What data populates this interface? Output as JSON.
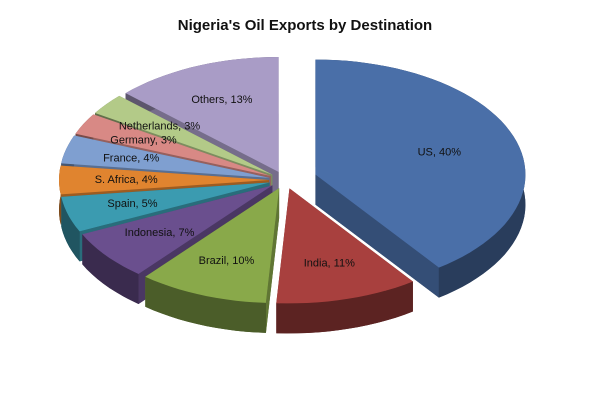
{
  "chart_data": {
    "type": "pie",
    "title": "Nigeria's Oil Exports by Destination",
    "values": [
      40,
      11,
      10,
      7,
      5,
      4,
      4,
      3,
      3,
      13
    ],
    "value_labels": [
      "US, 40%",
      "India, 11%",
      "Brazil, 10%",
      "Indonesia, 7%",
      "Spain, 5%",
      "S. Africa, 4%",
      "France, 4%",
      "Germany, 3%",
      "Netherlands, 3%",
      "Others, 13%"
    ],
    "colors": [
      "#4a6fa8",
      "#a8403e",
      "#89a94a",
      "#6a4f8e",
      "#3b9bb0",
      "#e0842f",
      "#7f9fd0",
      "#d88985",
      "#b3ca88",
      "#a99cc6"
    ]
  }
}
